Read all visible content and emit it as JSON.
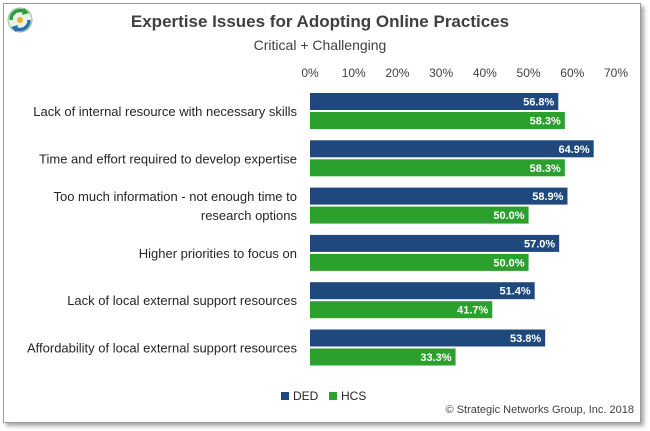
{
  "chart_data": {
    "type": "bar",
    "orientation": "horizontal",
    "title": "Expertise Issues for Adopting Online Practices",
    "subtitle": "Critical + Challenging",
    "categories": [
      [
        "Lack of internal resource with necessary skills"
      ],
      [
        "Time and effort required to develop expertise"
      ],
      [
        "Too much information - not enough time to",
        "research options"
      ],
      [
        "Higher priorities to focus on"
      ],
      [
        "Lack of local external support resources"
      ],
      [
        "Affordability of local external support resources"
      ]
    ],
    "series": [
      {
        "name": "DED",
        "color": "#1f497d",
        "values": [
          56.8,
          64.9,
          58.9,
          57.0,
          51.4,
          53.8
        ],
        "labels": [
          "56.8%",
          "64.9%",
          "58.9%",
          "57.0%",
          "51.4%",
          "53.8%"
        ]
      },
      {
        "name": "HCS",
        "color": "#2ca02c",
        "values": [
          58.3,
          58.3,
          50.0,
          50.0,
          41.7,
          33.3
        ],
        "labels": [
          "58.3%",
          "58.3%",
          "50.0%",
          "50.0%",
          "41.7%",
          "33.3%"
        ]
      }
    ],
    "xlim": [
      0,
      70
    ],
    "ticks": [
      0,
      10,
      20,
      30,
      40,
      50,
      60,
      70
    ],
    "tick_labels": [
      "0%",
      "10%",
      "20%",
      "30%",
      "40%",
      "50%",
      "60%",
      "70%"
    ],
    "axis_position": "top",
    "grid": false,
    "legend": "bottom"
  },
  "footer": {
    "copyright": "© Strategic Networks Group, Inc. 2018"
  }
}
